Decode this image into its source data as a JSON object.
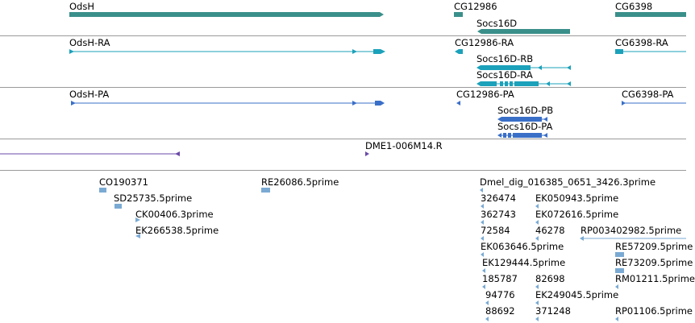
{
  "colors": {
    "gene": "#3a8f8a",
    "transcript": "#1ba1ba",
    "protein": "#3a6fc8",
    "clone": "#6a4aa8",
    "est": "#7aaad3",
    "separator": "#9a9a9a"
  },
  "tracks": {
    "genes": [
      {
        "label": "OdsH"
      },
      {
        "label": "CG12986"
      },
      {
        "label": "Socs16D"
      },
      {
        "label": "CG6398"
      }
    ],
    "transcripts": [
      {
        "label": "OdsH-RA"
      },
      {
        "label": "CG12986-RA"
      },
      {
        "label": "Socs16D-RB"
      },
      {
        "label": "Socs16D-RA"
      },
      {
        "label": "CG6398-RA"
      }
    ],
    "proteins": [
      {
        "label": "OdsH-PA"
      },
      {
        "label": "CG12986-PA"
      },
      {
        "label": "Socs16D-PB"
      },
      {
        "label": "Socs16D-PA"
      },
      {
        "label": "CG6398-PA"
      }
    ],
    "clones": [
      {
        "label": "DME1-006M14.R"
      }
    ],
    "ests": [
      {
        "label": "CO190371"
      },
      {
        "label": "SD25735.5prime"
      },
      {
        "label": "CK00406.3prime"
      },
      {
        "label": "EK266538.5prime"
      },
      {
        "label": "RE26086.5prime"
      },
      {
        "label": "Dmel_dig_016385_0651_3426.3prime"
      },
      {
        "label": "326474"
      },
      {
        "label": "EK050943.5prime"
      },
      {
        "label": "362743"
      },
      {
        "label": "EK072616.5prime"
      },
      {
        "label": "72584"
      },
      {
        "label": "46278"
      },
      {
        "label": "RP003402982.5prime"
      },
      {
        "label": "EK063646.5prime"
      },
      {
        "label": "RE57209.5prime"
      },
      {
        "label": "EK129444.5prime"
      },
      {
        "label": "RE73209.5prime"
      },
      {
        "label": "185787"
      },
      {
        "label": "82698"
      },
      {
        "label": "RM01211.5prime"
      },
      {
        "label": "94776"
      },
      {
        "label": "EK249045.5prime"
      },
      {
        "label": "88692"
      },
      {
        "label": "371248"
      },
      {
        "label": "RP01106.5prime"
      }
    ]
  }
}
